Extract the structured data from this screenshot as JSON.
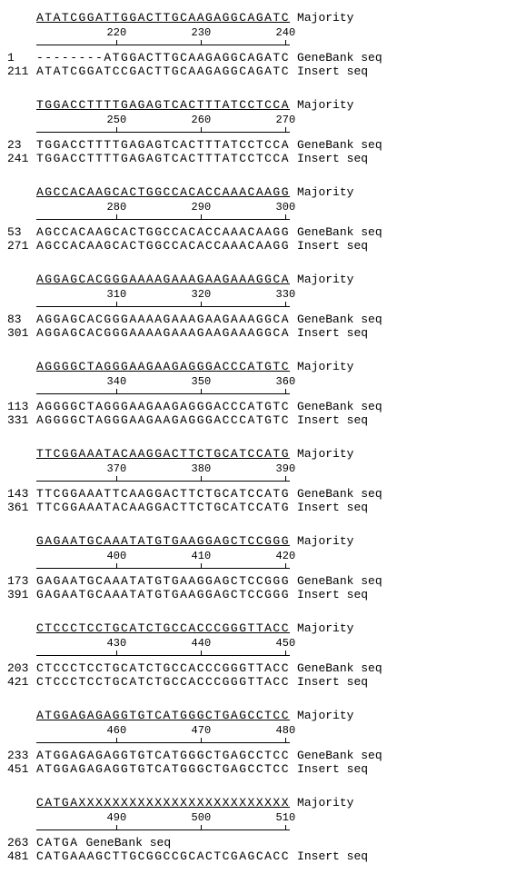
{
  "charW": 9.3,
  "seqLen": 30,
  "tickOffsets": [
    9,
    19,
    29
  ],
  "labels": {
    "majority": "Majority",
    "genebank": "GeneBank seq",
    "insert": "Insert seq"
  },
  "blocks": [
    {
      "majority": "ATATCGGATTGGACTTGCAAGAGGCAGATC",
      "ruler": [
        220,
        230,
        240
      ],
      "rows": [
        {
          "num": 1,
          "seq": "--------ATGGACTTGCAAGAGGCAGATC",
          "label": "genebank"
        },
        {
          "num": 211,
          "seq": "ATATCGGATCCGACTTGCAAGAGGCAGATC",
          "label": "insert"
        }
      ]
    },
    {
      "majority": "TGGACCTTTTGAGAGTCACTTTATCCTCCA",
      "ruler": [
        250,
        260,
        270
      ],
      "rows": [
        {
          "num": 23,
          "seq": "TGGACCTTTTGAGAGTCACTTTATCCTCCA",
          "label": "genebank"
        },
        {
          "num": 241,
          "seq": "TGGACCTTTTGAGAGTCACTTTATCCTCCA",
          "label": "insert"
        }
      ]
    },
    {
      "majority": "AGCCACAAGCACTGGCCACACCAAACAAGG",
      "ruler": [
        280,
        290,
        300
      ],
      "rows": [
        {
          "num": 53,
          "seq": "AGCCACAAGCACTGGCCACACCAAACAAGG",
          "label": "genebank"
        },
        {
          "num": 271,
          "seq": "AGCCACAAGCACTGGCCACACCAAACAAGG",
          "label": "insert"
        }
      ]
    },
    {
      "majority": "AGGAGCACGGGAAAAGAAAGAAGAAAGGCA",
      "ruler": [
        310,
        320,
        330
      ],
      "rows": [
        {
          "num": 83,
          "seq": "AGGAGCACGGGAAAAGAAAGAAGAAAGGCA",
          "label": "genebank"
        },
        {
          "num": 301,
          "seq": "AGGAGCACGGGAAAAGAAAGAAGAAAGGCA",
          "label": "insert"
        }
      ]
    },
    {
      "majority": "AGGGGCTAGGGAAGAAGAGGGACCCATGTC",
      "ruler": [
        340,
        350,
        360
      ],
      "rows": [
        {
          "num": 113,
          "seq": "AGGGGCTAGGGAAGAAGAGGGACCCATGTC",
          "label": "genebank"
        },
        {
          "num": 331,
          "seq": "AGGGGCTAGGGAAGAAGAGGGACCCATGTC",
          "label": "insert"
        }
      ]
    },
    {
      "majority": "TTCGGAAATACAAGGACTTCTGCATCCATG",
      "ruler": [
        370,
        380,
        390
      ],
      "rows": [
        {
          "num": 143,
          "seq": "TTCGGAAATTCAAGGACTTCTGCATCCATG",
          "label": "genebank"
        },
        {
          "num": 361,
          "seq": "TTCGGAAATACAAGGACTTCTGCATCCATG",
          "label": "insert"
        }
      ]
    },
    {
      "majority": "GAGAATGCAAATATGTGAAGGAGCTCCGGG",
      "ruler": [
        400,
        410,
        420
      ],
      "rows": [
        {
          "num": 173,
          "seq": "GAGAATGCAAATATGTGAAGGAGCTCCGGG",
          "label": "genebank"
        },
        {
          "num": 391,
          "seq": "GAGAATGCAAATATGTGAAGGAGCTCCGGG",
          "label": "insert"
        }
      ]
    },
    {
      "majority": "CTCCCTCCTGCATCTGCCACCCGGGTTACC",
      "ruler": [
        430,
        440,
        450
      ],
      "rows": [
        {
          "num": 203,
          "seq": "CTCCCTCCTGCATCTGCCACCCGGGTTACC",
          "label": "genebank"
        },
        {
          "num": 421,
          "seq": "CTCCCTCCTGCATCTGCCACCCGGGTTACC",
          "label": "insert"
        }
      ]
    },
    {
      "majority": "ATGGAGAGAGGTGTCATGGGCTGAGCCTCC",
      "ruler": [
        460,
        470,
        480
      ],
      "rows": [
        {
          "num": 233,
          "seq": "ATGGAGAGAGGTGTCATGGGCTGAGCCTCC",
          "label": "genebank"
        },
        {
          "num": 451,
          "seq": "ATGGAGAGAGGTGTCATGGGCTGAGCCTCC",
          "label": "insert"
        }
      ]
    },
    {
      "majority": "CATGAXXXXXXXXXXXXXXXXXXXXXXXXX",
      "ruler": [
        490,
        500,
        510
      ],
      "rows": [
        {
          "num": 263,
          "seq": "CATGA",
          "label": "genebank"
        },
        {
          "num": 481,
          "seq": "CATGAAAGCTTGCGGCCGCACTCGAGCACC",
          "label": "insert"
        }
      ]
    }
  ]
}
